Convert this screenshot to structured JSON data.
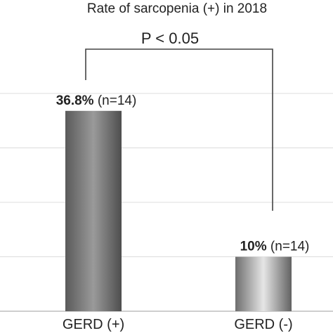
{
  "chart_data": {
    "type": "bar",
    "title": "Rate of sarcopenia (+) in 2018",
    "categories": [
      "GERD (+)",
      "GERD (-)"
    ],
    "values": [
      36.8,
      10
    ],
    "value_labels": [
      "36.8%",
      "10%"
    ],
    "n_labels": [
      "(n=14)",
      "(n=14)"
    ],
    "ylim": [
      0,
      40
    ],
    "grid": true,
    "significance": "P < 0.05"
  }
}
